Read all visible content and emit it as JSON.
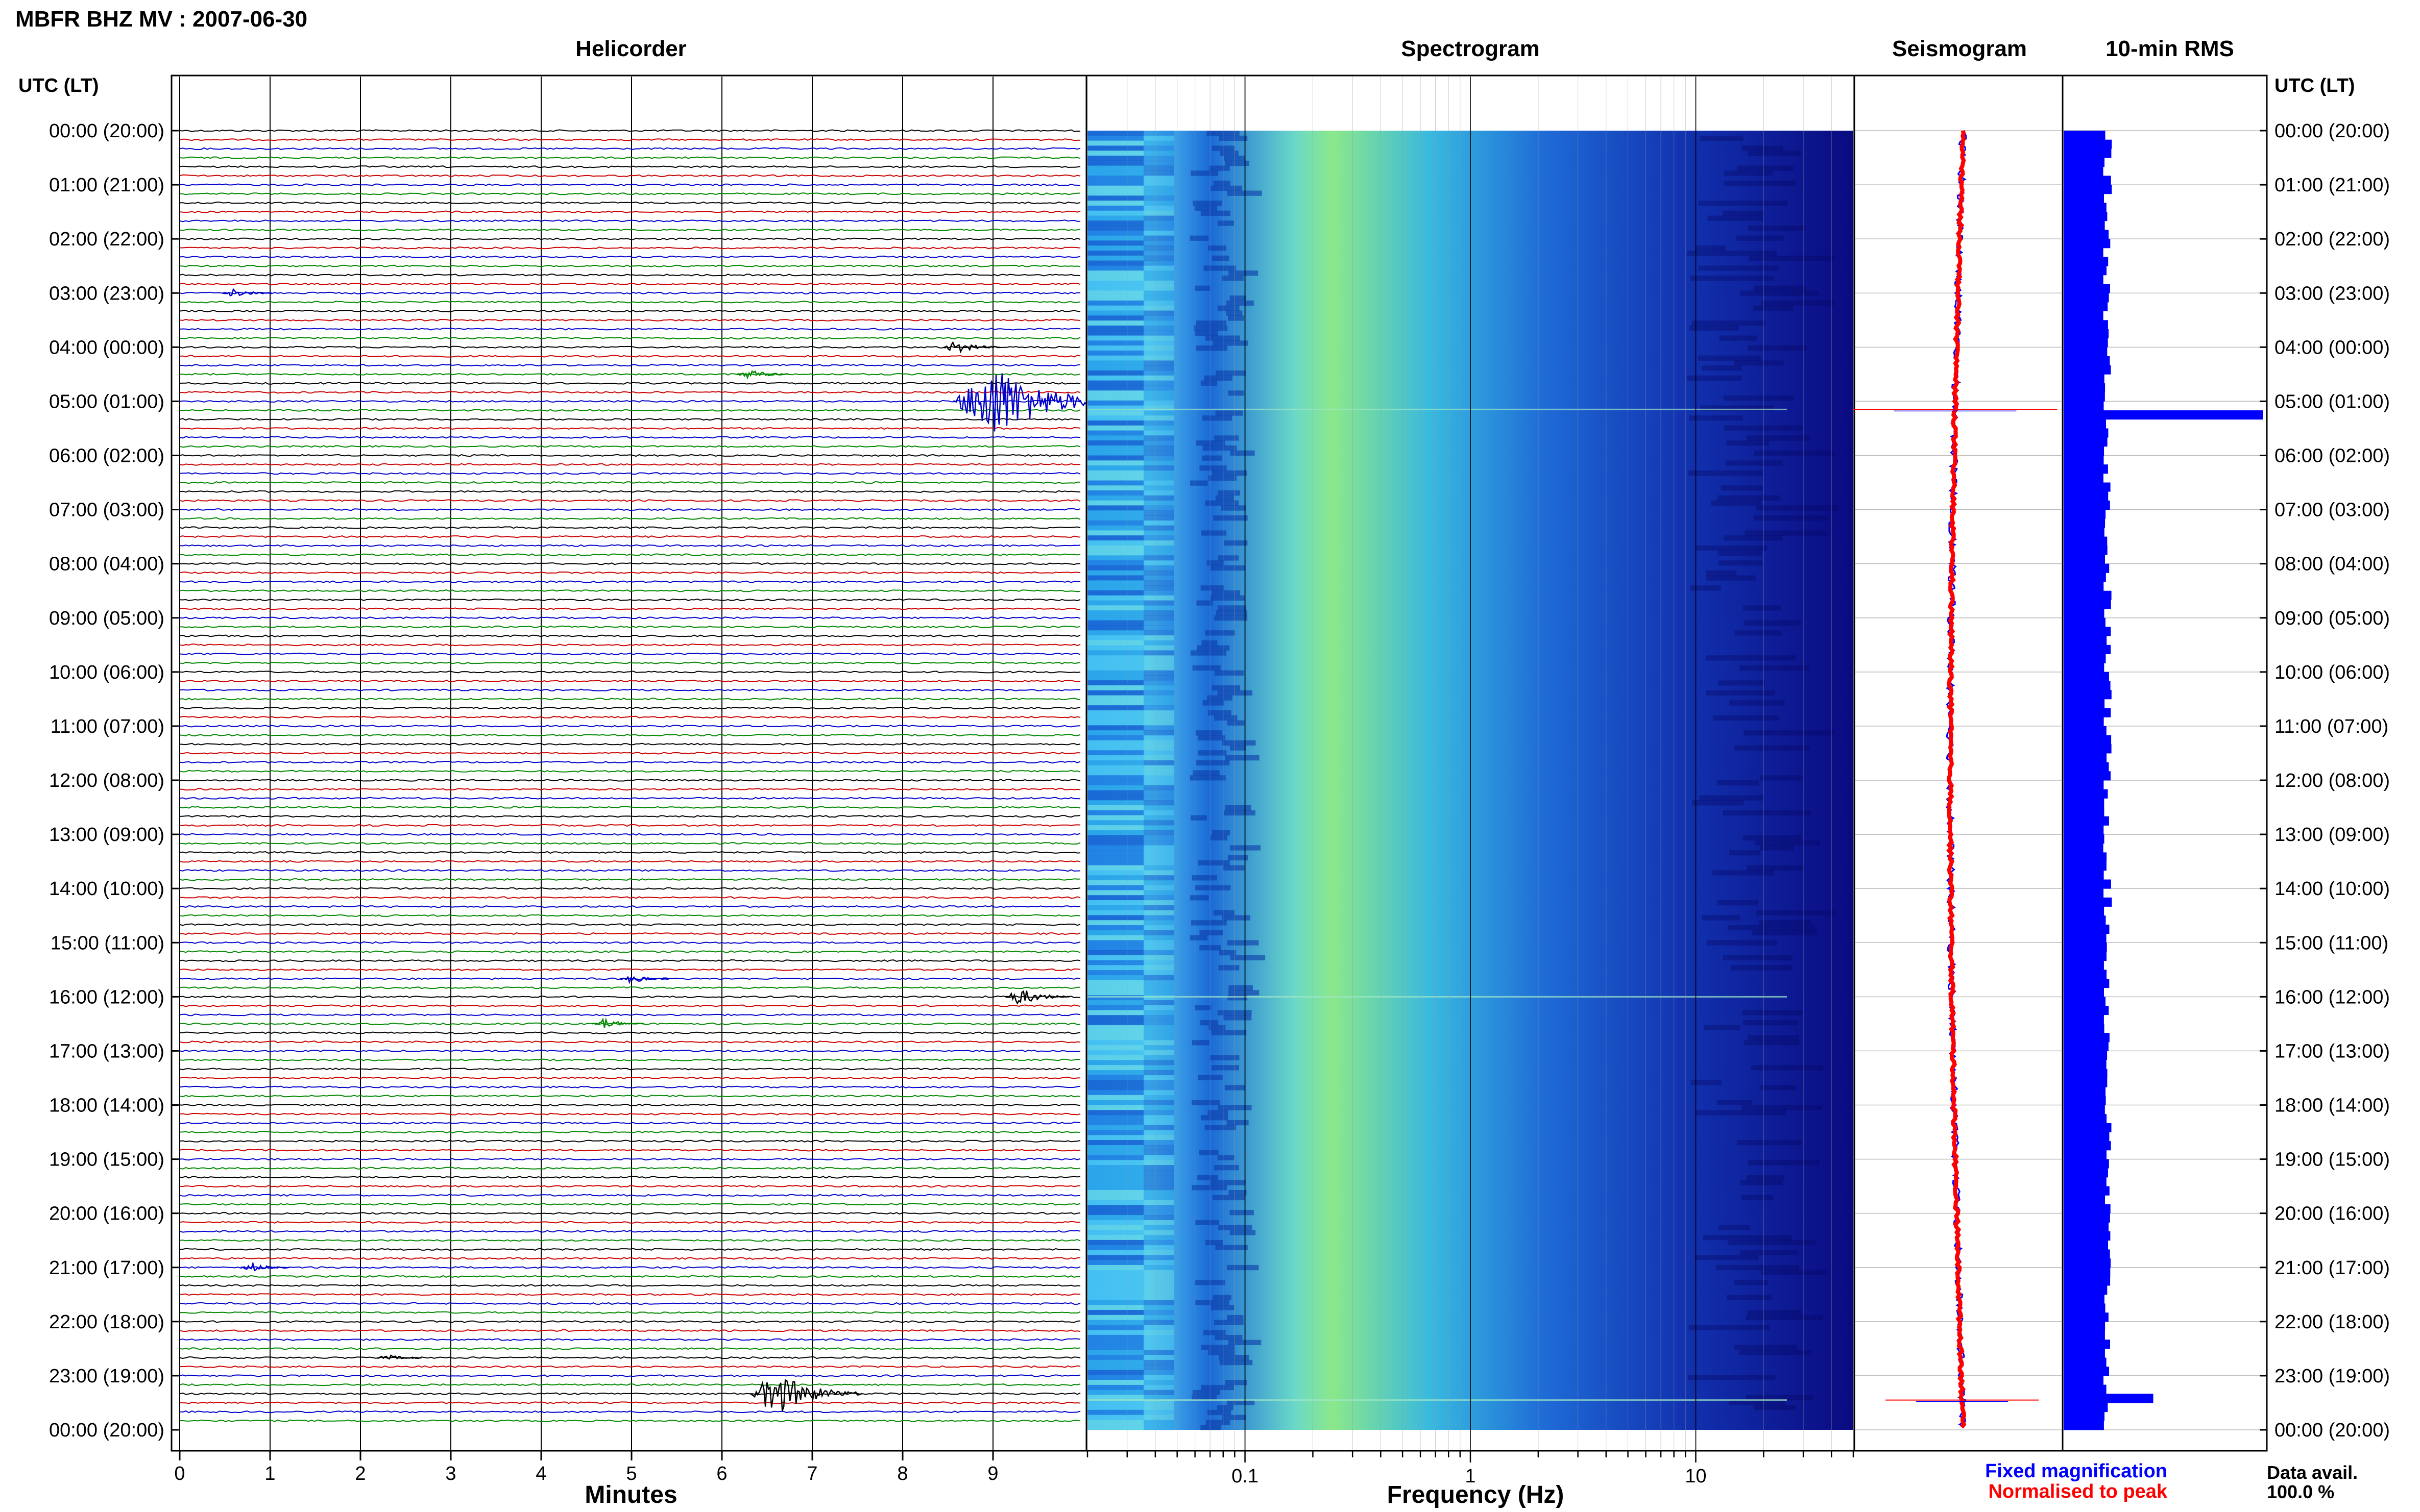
{
  "page": {
    "title": "MBFR BHZ MV : 2007-06-30",
    "panel_titles": {
      "helicorder": "Helicorder",
      "spectrogram": "Spectrogram",
      "seismogram": "Seismogram",
      "rms": "10-min RMS"
    },
    "time_axis_label": "UTC (LT)",
    "x_labels": {
      "helicorder": "Minutes",
      "spectrogram": "Frequency (Hz)"
    },
    "legend": {
      "fixed": "Fixed magnification",
      "normalised": "Normalised to peak"
    },
    "data_avail": {
      "label": "Data avail.",
      "value": "100.0 %"
    }
  },
  "colors": {
    "trace_cycle": [
      "#000000",
      "#cc0000",
      "#0000cc",
      "#008800"
    ],
    "rms_bar": "#0000ff",
    "fixed": "#0000ff",
    "normalised": "#ff0000",
    "spectrogram_low": "#08087a",
    "spectrogram_mid": "#1e90ff",
    "spectrogram_high": "#7cfc90"
  },
  "chart_data": [
    {
      "type": "line",
      "panel": "helicorder",
      "xlabel": "Minutes",
      "xlim": [
        0,
        10
      ],
      "x_ticks": [
        "0",
        "1",
        "2",
        "3",
        "4",
        "5",
        "6",
        "7",
        "8",
        "9"
      ],
      "hour_labels": [
        "00:00 (20:00)",
        "01:00 (21:00)",
        "02:00 (22:00)",
        "03:00 (23:00)",
        "04:00 (00:00)",
        "05:00 (01:00)",
        "06:00 (02:00)",
        "07:00 (03:00)",
        "08:00 (04:00)",
        "09:00 (05:00)",
        "10:00 (06:00)",
        "11:00 (07:00)",
        "12:00 (08:00)",
        "13:00 (09:00)",
        "14:00 (10:00)",
        "15:00 (11:00)",
        "16:00 (12:00)",
        "17:00 (13:00)",
        "18:00 (14:00)",
        "19:00 (15:00)",
        "20:00 (16:00)",
        "21:00 (17:00)",
        "22:00 (18:00)",
        "23:00 (19:00)",
        "00:00 (20:00)"
      ],
      "traces_per_hour": 6,
      "events": [
        {
          "hour": 4.0,
          "minute": 8.6,
          "amp": 0.6
        },
        {
          "hour": 4.5,
          "minute": 6.3,
          "amp": 0.5
        },
        {
          "hour": 5.0,
          "minute": 9.0,
          "amp": 3.5
        },
        {
          "hour": 16.0,
          "minute": 9.3,
          "amp": 0.8
        },
        {
          "hour": 16.5,
          "minute": 4.7,
          "amp": 0.5
        },
        {
          "hour": 15.67,
          "minute": 5.0,
          "amp": 0.4
        },
        {
          "hour": 21.0,
          "minute": 0.8,
          "amp": 0.4
        },
        {
          "hour": 22.67,
          "minute": 2.3,
          "amp": 0.3
        },
        {
          "hour": 23.33,
          "minute": 6.6,
          "amp": 2.0
        },
        {
          "hour": 3.0,
          "minute": 0.6,
          "amp": 0.4
        }
      ]
    },
    {
      "type": "heatmap",
      "panel": "spectrogram",
      "xlabel": "Frequency (Hz)",
      "x_scale": "log",
      "xlim": [
        0.02,
        50
      ],
      "x_tick_labels": [
        "0.1",
        "1",
        "10"
      ]
    },
    {
      "type": "line",
      "panel": "seismogram",
      "series": [
        {
          "name": "Fixed magnification",
          "color": "#0000ff"
        },
        {
          "name": "Normalised to peak",
          "color": "#ff0000"
        }
      ],
      "spikes_hours": [
        5.15,
        23.45
      ]
    },
    {
      "type": "bar",
      "panel": "10-min RMS",
      "orientation": "horizontal",
      "base_level": 0.22,
      "peaks": [
        {
          "hour": 5.1,
          "value": 1.0
        },
        {
          "hour": 23.3,
          "value": 0.45
        },
        {
          "hour": 4.7,
          "value": 0.18
        },
        {
          "hour": 0.3,
          "value": 0.18
        },
        {
          "hour": 3.0,
          "value": 0.15
        },
        {
          "hour": 16.0,
          "value": 0.16
        },
        {
          "hour": 12.6,
          "value": 0.15
        }
      ]
    }
  ]
}
